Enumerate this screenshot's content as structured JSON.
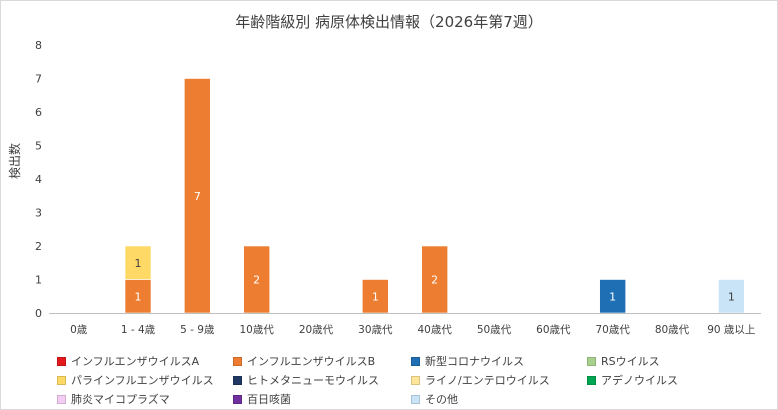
{
  "chart_data": {
    "type": "bar",
    "stacked": true,
    "title": "年齢階級別 病原体検出情報（2026年第7週）",
    "xlabel": "",
    "ylabel": "検出数",
    "ylim": [
      0,
      8
    ],
    "yticks": [
      "0",
      "1",
      "2",
      "3",
      "4",
      "5",
      "6",
      "7",
      "8"
    ],
    "categories": [
      "0歳",
      "1 - 4歳",
      "5 - 9歳",
      "10歳代",
      "20歳代",
      "30歳代",
      "40歳代",
      "50歳代",
      "60歳代",
      "70歳代",
      "80歳代",
      "90 歳以上"
    ],
    "series": [
      {
        "name": "インフルエンザウイルスA",
        "color": "#e31a1c",
        "values": [
          0,
          0,
          0,
          0,
          0,
          0,
          0,
          0,
          0,
          0,
          0,
          0
        ]
      },
      {
        "name": "インフルエンザウイルスB",
        "color": "#ed7d31",
        "values": [
          0,
          1,
          7,
          2,
          0,
          1,
          2,
          0,
          0,
          0,
          0,
          0
        ]
      },
      {
        "name": "新型コロナウイルス",
        "color": "#1f6fb4",
        "values": [
          0,
          0,
          0,
          0,
          0,
          0,
          0,
          0,
          0,
          1,
          0,
          0
        ]
      },
      {
        "name": "RSウイルス",
        "color": "#a9d18e",
        "values": [
          0,
          0,
          0,
          0,
          0,
          0,
          0,
          0,
          0,
          0,
          0,
          0
        ]
      },
      {
        "name": "パラインフルエンザウイルス",
        "color": "#ffd966",
        "values": [
          0,
          1,
          0,
          0,
          0,
          0,
          0,
          0,
          0,
          0,
          0,
          0
        ]
      },
      {
        "name": "ヒトメタニューモウイルス",
        "color": "#203864",
        "values": [
          0,
          0,
          0,
          0,
          0,
          0,
          0,
          0,
          0,
          0,
          0,
          0
        ]
      },
      {
        "name": "ライノ/エンテロウイルス",
        "color": "#ffe699",
        "values": [
          0,
          0,
          0,
          0,
          0,
          0,
          0,
          0,
          0,
          0,
          0,
          0
        ]
      },
      {
        "name": "アデノウイルス",
        "color": "#00a651",
        "values": [
          0,
          0,
          0,
          0,
          0,
          0,
          0,
          0,
          0,
          0,
          0,
          0
        ]
      },
      {
        "name": "肺炎マイコプラズマ",
        "color": "#f4cdf4",
        "values": [
          0,
          0,
          0,
          0,
          0,
          0,
          0,
          0,
          0,
          0,
          0,
          0
        ]
      },
      {
        "name": "百日咳菌",
        "color": "#7030a0",
        "values": [
          0,
          0,
          0,
          0,
          0,
          0,
          0,
          0,
          0,
          0,
          0,
          0
        ]
      },
      {
        "name": "その他",
        "color": "#c9e4f7",
        "values": [
          0,
          0,
          0,
          0,
          0,
          0,
          0,
          0,
          0,
          0,
          0,
          1
        ]
      }
    ],
    "legend_order": [
      0,
      1,
      2,
      3,
      4,
      5,
      6,
      7,
      8,
      9,
      10
    ],
    "grid": false,
    "legend_position": "bottom"
  }
}
